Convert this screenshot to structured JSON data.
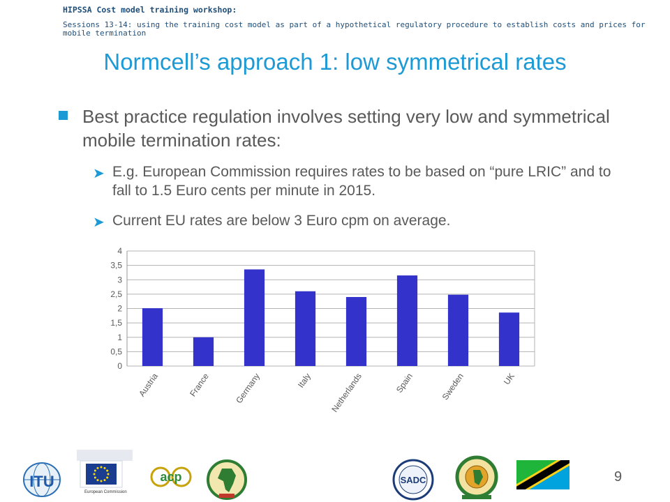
{
  "header": {
    "line1": "HIPSSA Cost model training workshop:",
    "line2": "Sessions 13-14: using the training cost model as part of a hypothetical regulatory procedure to establish costs and prices for mobile termination"
  },
  "slide": {
    "title": "Normcell’s approach 1: low symmetrical rates",
    "bullet1": "Best practice regulation involves setting very low and symmetrical mobile termination rates:",
    "sub1": "E.g. European Commission requires rates to be based on “pure LRIC” and to fall to 1.5 Euro cents per minute in 2015.",
    "sub2": "Current EU rates are below 3 Euro cpm on average.",
    "page_number": "9"
  },
  "colors": {
    "accent": "#1c9ad6",
    "bar": "#3333cc",
    "text": "#595959",
    "header": "#1f4e79"
  },
  "logos": {
    "itu": {
      "icon": "itu-logo",
      "text": "ITU"
    },
    "eu": {
      "icon": "european-commission-logo",
      "text": "European Commission"
    },
    "acp": {
      "icon": "acp-logo",
      "text": "acp"
    },
    "au": {
      "icon": "african-union-logo"
    },
    "sadc": {
      "icon": "sadc-logo",
      "text": "SADC"
    },
    "eac": {
      "icon": "east-african-community-logo"
    },
    "tanzania": {
      "icon": "tanzania-flag"
    }
  },
  "chart_data": {
    "type": "bar",
    "categories": [
      "Austria",
      "France",
      "Germany",
      "Italy",
      "Netherlands",
      "Spain",
      "Sweden",
      "UK"
    ],
    "values": [
      2.01,
      1.0,
      3.36,
      2.6,
      2.4,
      3.15,
      2.48,
      1.86
    ],
    "ylim": [
      0,
      4
    ],
    "yticks": [
      "0",
      "0,5",
      "1",
      "1,5",
      "2",
      "2,5",
      "3",
      "3,5",
      "4"
    ],
    "grid": true,
    "legend": "none"
  }
}
